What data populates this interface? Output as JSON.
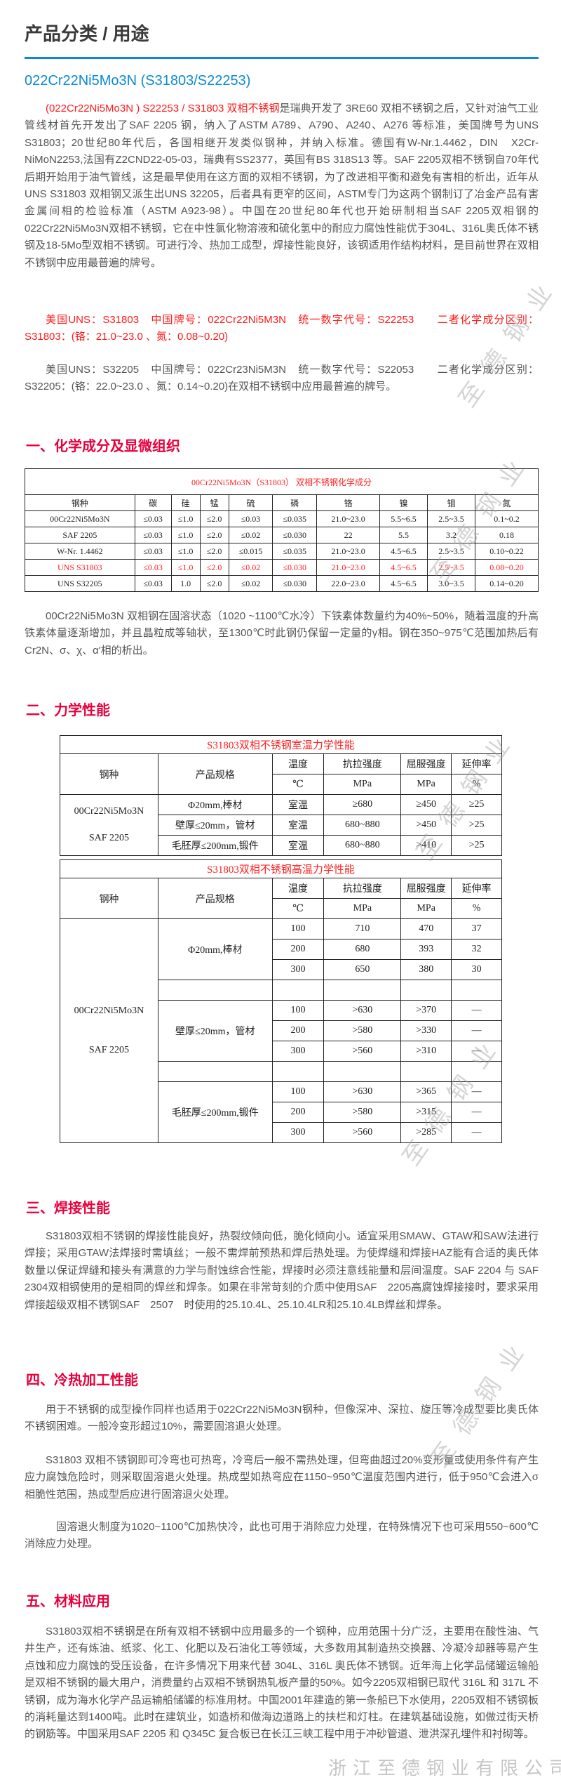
{
  "page_title": "产品分类 / 用途",
  "subtitle": "022Cr22Ni5Mo3N (S31803/S22253)",
  "intro": {
    "red_prefix": "(022Cr22Ni5Mo3N ) S22253 / S31803 双相不锈钢",
    "text": "是瑞典开发了 3RE60 双相不锈钢之后，又针对油气工业管线材首先开发出了SAF 2205 钢，纳入了ASTM A789、A790、A240、A276 等标准，美国牌号为UNS　　S31803；20世纪80年代后，各国相继开发类似钢种，并纳入标准。德国有W-Nr.1.4462，DIN　X2Cr-NiMoN2253,法国有Z2CND22-05-03，瑞典有SS2377，英国有BS 318S13 等。SAF 2205双相不锈钢自70年代后期开始用于油气管线，这是最早使用在这方面的双相不锈钢，为了改进相平衡和避免有害相的析出，近年从UNS S31803 双相钢又派生出UNS 32205，后者具有更窄的区间，ASTM专门为这两个钢制订了冶金产品有害金属间相的检验标准（ASTM A923-98）。中国在20世纪80年代也开始研制相当SAF 2205双相钢的022Cr22Ni5Mo3N双相不锈钢，它在中性氯化物溶液和硫化氢中的耐应力腐蚀性能优于304L、316L奥氏体不锈钢及18-5Mo型双相不锈钢。可进行冷、热加工成型，焊接性能良好，该钢适用作结构材料，是目前世界在双相不锈钢中应用最普遍的牌号。"
  },
  "grade_note_1": "美国UNS：S31803　中国牌号：022Cr22Ni5M3N　统一数字代号：S22253　　二者化学成分区别：S31803：(铬：21.0~23.0 、氮：0.08~0.20)",
  "grade_note_2": "美国UNS：S32205　中国牌号：022Cr23Ni5M3N　统一数字代号：S22053　　二者化学成分区别：S32205：(铬：22.0~23.0 、氮：0.14~0.20)在双相不锈钢中应用最普遍的牌号。",
  "sections": {
    "s1": {
      "heading": "一、化学成分及显微组织",
      "table_title": "00Cr22Ni5Mo3N（S31803） 双相不锈钢化学成分",
      "headers": [
        "钢种",
        "碳",
        "硅",
        "锰",
        "硫",
        "磷",
        "铬",
        "镍",
        "钼",
        "氮"
      ],
      "rows": [
        [
          "00Cr22Ni5Mo3N",
          "≤0.03",
          "≤1.0",
          "≤2.0",
          "≤0.03",
          "≤0.035",
          "21.0~23.0",
          "5.5~6.5",
          "2.5~3.5",
          "0.1~0.2"
        ],
        [
          "SAF 2205",
          "≤0.03",
          "≤1.0",
          "≤2.0",
          "≤0.02",
          "≤0.030",
          "22",
          "5.5",
          "3.2",
          "0.18"
        ],
        [
          "W-Nr. 1.4462",
          "≤0.03",
          "≤1.0",
          "≤2.0",
          "≤0.015",
          "≤0.035",
          "21.0~23.0",
          "4.5~6.5",
          "2.5~3.5",
          "0.10~0.22"
        ],
        [
          "UNS S31803",
          "≤0.03",
          "≤1.0",
          "≤2.0",
          "≤0.02",
          "≤0.030",
          "21.0~23.0",
          "4.5~6.5",
          "2.5~3.5",
          "0.08~0.20"
        ],
        [
          "UNS S32205",
          "≤0.03",
          "1.0",
          "≤2.0",
          "≤0.02",
          "≤0.030",
          "22.0~23.0",
          "4.5~6.5",
          "3.0~3.5",
          "0.14~0.20"
        ]
      ],
      "highlight_row": "UNS S31803",
      "paragraph": "00Cr22Ni5Mo3N 双相钢在固溶状态（1020 ~1100℃水冷）下铁素体数量约为40%~50%，随着温度的升高铁素体量逐渐增加，并且晶粒成等轴状，至1300℃时此钢仍保留一定量的γ相。钢在350~975℃范围加热后有Cr2N、σ、χ、α′相的析出。"
    },
    "s2": {
      "heading": "二、力学性能",
      "room_title": "S31803双相不锈钢室温力学性能",
      "high_title": "S31803双相不锈钢高温力学性能",
      "headers": {
        "grade": "钢种",
        "spec": "产品规格",
        "temp": "温度",
        "tensile": "抗拉强度",
        "yield": "屈服强度",
        "elong": "延伸率"
      },
      "units": {
        "temp": "℃",
        "tensile": "MPa",
        "yield": "MPa",
        "elong": "%"
      },
      "grades": [
        "00Cr22Ni5Mo3N",
        "SAF 2205"
      ],
      "room_rows": [
        {
          "spec": "Φ20mm,棒材",
          "temp": "室温",
          "tensile": "≥680",
          "yield": "≥450",
          "elong": "≥25"
        },
        {
          "spec": "壁厚≤20mm，管材",
          "temp": "室温",
          "tensile": "680~880",
          "yield": ">450",
          "elong": ">25"
        },
        {
          "spec": "毛胚厚≤200mm,锻件",
          "temp": "室温",
          "tensile": "680~880",
          "yield": ">410",
          "elong": ">25"
        }
      ],
      "high_groups": [
        {
          "spec": "Φ20mm,棒材",
          "rows": [
            [
              "100",
              "710",
              "470",
              "37"
            ],
            [
              "200",
              "680",
              "393",
              "32"
            ],
            [
              "300",
              "650",
              "380",
              "30"
            ]
          ]
        },
        {
          "spec": "壁厚≤20mm，管材",
          "rows": [
            [
              "100",
              ">630",
              ">370",
              "—"
            ],
            [
              "200",
              ">580",
              ">330",
              "—"
            ],
            [
              "300",
              ">560",
              ">310",
              "—"
            ]
          ]
        },
        {
          "spec": "毛胚厚≤200mm,锻件",
          "rows": [
            [
              "100",
              ">630",
              ">365",
              "—"
            ],
            [
              "200",
              ">580",
              ">315",
              "—"
            ],
            [
              "300",
              ">560",
              ">285",
              "—"
            ]
          ]
        }
      ]
    },
    "s3": {
      "heading": "三、焊接性能",
      "paragraph": "S31803双相不锈钢的焊接性能良好，热裂纹倾向低，脆化倾向小。适宜采用SMAW、GTAW和SAW法进行焊接；采用GTAW法焊接时需填丝；一般不需焊前预热和焊后热处理。为使焊缝和焊接HAZ能有合适的奥氏体数量以保证焊缝和接头有满意的力学与耐蚀综合性能，焊接时必须注意线能量和层间温度。SAF 2204 与 SAF 2304双相钢使用的是相同的焊丝和焊条。如果在非常苛刻的介质中使用SAF　2205高腐蚀焊接接时，要求采用焊接超级双相不锈钢SAF　2507　时使用的25.10.4L、25.10.4LR和25.10.4LB焊丝和焊条。"
    },
    "s4": {
      "heading": "四、冷热加工性能",
      "p1": "用于不锈钢的成型操作同样也适用于022Cr22Ni5Mo3N钢种，但像深冲、深拉、旋压等冷成型要比奥氏体不锈钢困难。一般冷变形超过10%，需要固溶退火处理。",
      "p2": "S31803 双相不锈钢即可冷弯也可热弯，冷弯后一般不需热处理，但弯曲超过20%变形量或使用条件有产生应力腐蚀危险时，则采取固溶退火处理。热成型如热弯应在1150~950℃温度范围内进行，低于950℃会进入σ相脆性范围，热成型后应进行固溶退火处理。",
      "p3": "固溶退火制度为1020~1100℃加热快冷，此也可用于消除应力处理，在特殊情况下也可采用550~600℃消除应力处理。"
    },
    "s5": {
      "heading": "五、材料应用",
      "paragraph": "S31803双相不锈钢是在所有双相不锈钢中应用最多的一个钢种，应用范围十分广泛，主要用在酸性油、气井生产，还有炼油、纸浆、化工、化肥以及石油化工等领域，大多数用其制造热交换器、冷凝冷却器等易产生点蚀和应力腐蚀的受压设备，在许多情况下用来代替 304L、316L 奥氏体不锈钢。近年海上化学品储罐运输船是双相不锈钢的最大用户，消费量约占双相不锈钢热轧板产量的50%。如今2205双相钢已取代 316L 和 317L 不锈钢，成为海水化学产品运输船储罐的标准用材。中国2001年建造的第一条船已下水使用，2205双相不锈钢板的消耗量达到1400吨。此时在建筑业，如造桥和做海边道路上的扶栏和灯柱。在建筑基础设施，如做过街天桥的钢筋等。中国采用SAF 2205 和 Q345C 复合板已在长江三峡工程中用于冲砂管道、泄洪深孔埋件和衬砌等。"
    }
  },
  "watermark": "至德钢业",
  "watermark_company": "浙江至德钢业有限公司",
  "colors": {
    "accent_blue": "#0a8ad4",
    "heading_red": "#e8003d",
    "highlight_red": "#ff1a1a",
    "body_text": "#555555"
  }
}
